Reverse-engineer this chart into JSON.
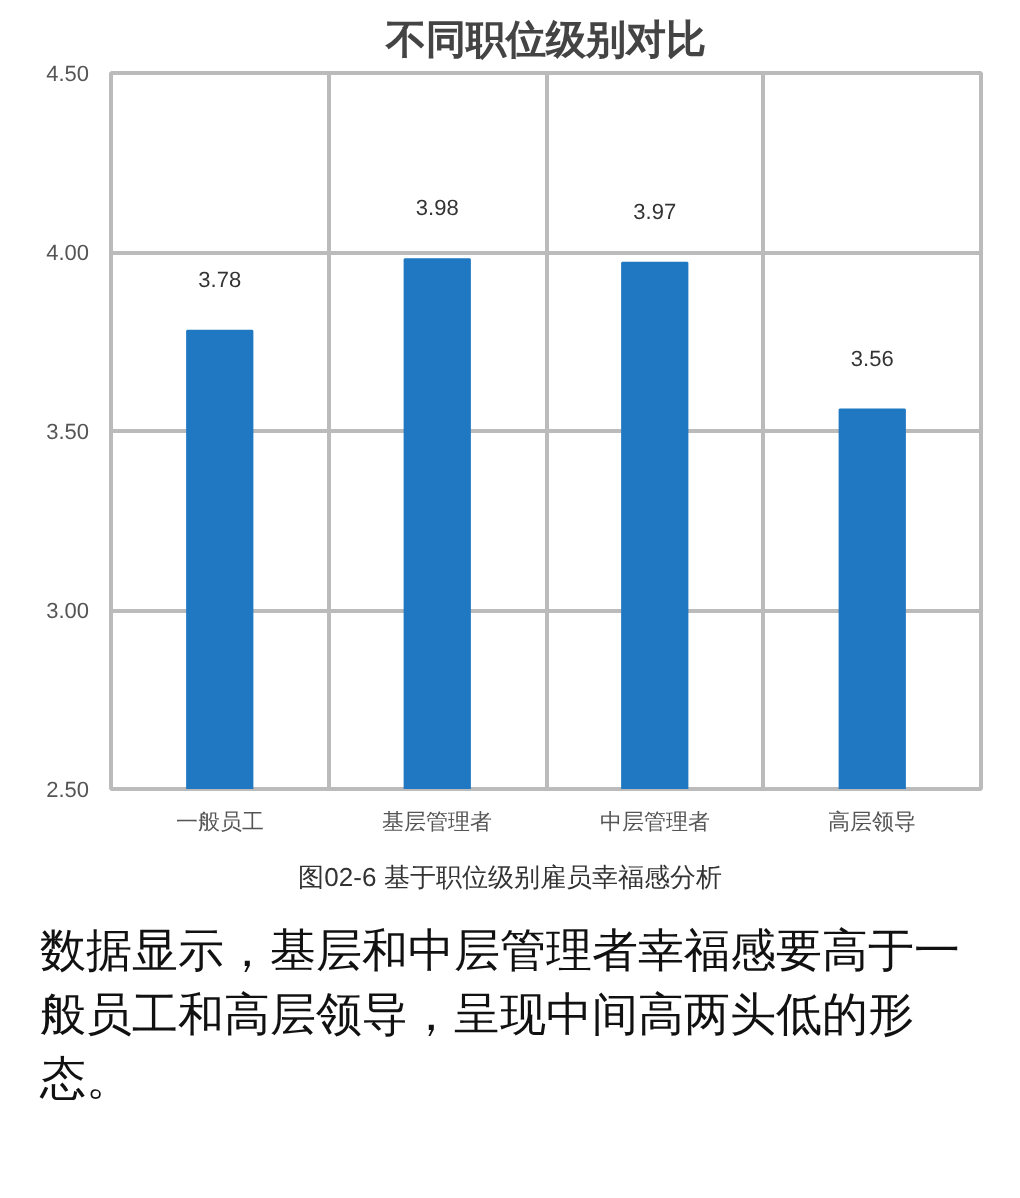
{
  "chart_data": {
    "type": "bar",
    "title": "不同职位级别对比",
    "categories": [
      "一般员工",
      "基层管理者",
      "中层管理者",
      "高层领导"
    ],
    "values": [
      3.78,
      3.98,
      3.97,
      3.56
    ],
    "color": "#1f78c1",
    "ylim": [
      2.5,
      4.5
    ],
    "yticks": [
      "2.50",
      "3.00",
      "3.50",
      "4.00",
      "4.50"
    ],
    "grid": true,
    "data_labels": true,
    "annotations": [
      "图02-6 基于职位级别雇员幸福感分析",
      "数据显示，基层和中层管理者幸福感要高于一般员工和高层领导，呈现中间高两头低的形态。"
    ]
  }
}
